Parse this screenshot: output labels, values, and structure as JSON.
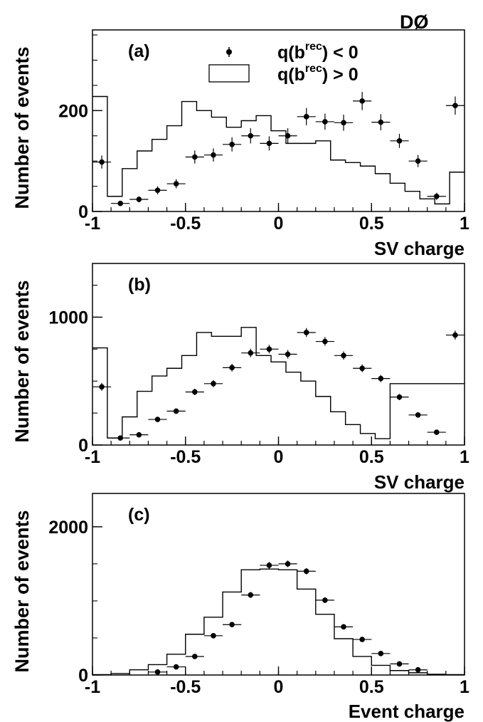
{
  "experiment_label": "DØ",
  "legend": {
    "neg_label": "q(b",
    "neg_sup": "rec",
    "neg_tail": ") < 0",
    "pos_label": "q(b",
    "pos_sup": "rec",
    "pos_tail": ") > 0"
  },
  "colors": {
    "ink": "#000000",
    "background": "#ffffff"
  },
  "chart_data": [
    {
      "type": "histogram",
      "panel_label": "(a)",
      "xlabel": "SV charge",
      "ylabel": "Number of events",
      "xlim": [
        -1,
        1
      ],
      "ylim": [
        0,
        360
      ],
      "x_ticks": [
        -1,
        -0.5,
        0,
        0.5,
        1
      ],
      "x_tick_labels": [
        "-1",
        "-0.5",
        "0",
        "0.5",
        "1"
      ],
      "y_ticks": [
        0,
        200
      ],
      "y_tick_labels": [
        "0",
        "200"
      ],
      "bin_edges": [
        -1,
        -0.92,
        -0.84,
        -0.76,
        -0.68,
        -0.6,
        -0.52,
        -0.44,
        -0.36,
        -0.28,
        -0.2,
        -0.12,
        -0.04,
        0.04,
        0.12,
        0.2,
        0.28,
        0.36,
        0.44,
        0.52,
        0.6,
        0.68,
        0.76,
        0.84,
        0.92,
        1
      ],
      "hist_values": [
        228,
        30,
        85,
        120,
        143,
        170,
        218,
        200,
        187,
        167,
        180,
        190,
        160,
        135,
        135,
        140,
        102,
        97,
        90,
        75,
        56,
        40,
        25,
        15,
        78
      ],
      "points": {
        "x": [
          -0.95,
          -0.85,
          -0.75,
          -0.65,
          -0.55,
          -0.45,
          -0.35,
          -0.25,
          -0.15,
          -0.05,
          0.05,
          0.15,
          0.25,
          0.35,
          0.45,
          0.55,
          0.65,
          0.75,
          0.85,
          0.95
        ],
        "y": [
          98,
          16,
          24,
          42,
          55,
          108,
          112,
          133,
          150,
          135,
          150,
          188,
          178,
          176,
          219,
          177,
          140,
          100,
          30,
          210
        ],
        "err": [
          13,
          4,
          6,
          8,
          9,
          13,
          13,
          14,
          15,
          14,
          15,
          17,
          16,
          16,
          18,
          16,
          14,
          12,
          7,
          18
        ]
      }
    },
    {
      "type": "histogram",
      "panel_label": "(b)",
      "xlabel": "SV charge",
      "ylabel": "Number of events",
      "xlim": [
        -1,
        1
      ],
      "ylim": [
        0,
        1420
      ],
      "x_ticks": [
        -1,
        -0.5,
        0,
        0.5,
        1
      ],
      "x_tick_labels": [
        "-1",
        "-0.5",
        "0",
        "0.5",
        "1"
      ],
      "y_ticks": [
        0,
        1000
      ],
      "y_tick_labels": [
        "0",
        "1000"
      ],
      "bin_edges": [
        -1,
        -0.92,
        -0.84,
        -0.76,
        -0.68,
        -0.6,
        -0.52,
        -0.44,
        -0.36,
        -0.28,
        -0.2,
        -0.12,
        -0.04,
        0.04,
        0.12,
        0.2,
        0.28,
        0.36,
        0.44,
        0.52,
        0.6,
        0.68,
        0.76,
        0.84,
        0.92,
        1
      ],
      "hist_values": [
        760,
        55,
        220,
        420,
        540,
        600,
        700,
        880,
        850,
        850,
        920,
        700,
        650,
        570,
        500,
        380,
        260,
        160,
        90,
        50,
        480,
        480,
        480,
        480,
        480
      ],
      "points": {
        "x": [
          -0.95,
          -0.85,
          -0.75,
          -0.65,
          -0.55,
          -0.45,
          -0.35,
          -0.25,
          -0.15,
          -0.05,
          0.05,
          0.15,
          0.25,
          0.35,
          0.45,
          0.55,
          0.65,
          0.75,
          0.85,
          0.95
        ],
        "y": [
          455,
          55,
          80,
          200,
          265,
          415,
          480,
          605,
          720,
          750,
          710,
          880,
          810,
          700,
          600,
          520,
          375,
          235,
          100,
          860
        ],
        "err": [
          30,
          10,
          12,
          18,
          20,
          25,
          27,
          30,
          33,
          33,
          33,
          35,
          34,
          32,
          30,
          28,
          24,
          19,
          12,
          35
        ]
      }
    },
    {
      "type": "histogram",
      "panel_label": "(c)",
      "xlabel": "Event charge",
      "ylabel": "Number of events",
      "xlim": [
        -1,
        1
      ],
      "ylim": [
        0,
        2450
      ],
      "x_ticks": [
        -1,
        -0.5,
        0,
        0.5,
        1
      ],
      "x_tick_labels": [
        "-1",
        "-0.5",
        "0",
        "0.5",
        "1"
      ],
      "y_ticks": [
        0,
        2000
      ],
      "y_tick_labels": [
        "0",
        "2000"
      ],
      "bin_edges": [
        -1,
        -0.9,
        -0.8,
        -0.7,
        -0.6,
        -0.5,
        -0.4,
        -0.3,
        -0.2,
        -0.1,
        0,
        0.1,
        0.2,
        0.3,
        0.4,
        0.5,
        0.6,
        0.7,
        0.8,
        0.9,
        1
      ],
      "hist_values": [
        5,
        20,
        70,
        140,
        280,
        550,
        780,
        1120,
        1420,
        1430,
        1420,
        1160,
        820,
        490,
        250,
        130,
        60,
        30,
        10,
        5
      ],
      "points": {
        "x": [
          -0.65,
          -0.55,
          -0.45,
          -0.35,
          -0.25,
          -0.15,
          -0.05,
          0.05,
          0.15,
          0.25,
          0.35,
          0.45,
          0.55,
          0.65,
          0.75
        ],
        "y": [
          40,
          110,
          250,
          530,
          680,
          1080,
          1480,
          1500,
          1400,
          1010,
          650,
          480,
          290,
          150,
          70
        ],
        "err": [
          15,
          20,
          25,
          30,
          32,
          40,
          45,
          45,
          43,
          38,
          30,
          26,
          20,
          15,
          10
        ]
      }
    }
  ]
}
